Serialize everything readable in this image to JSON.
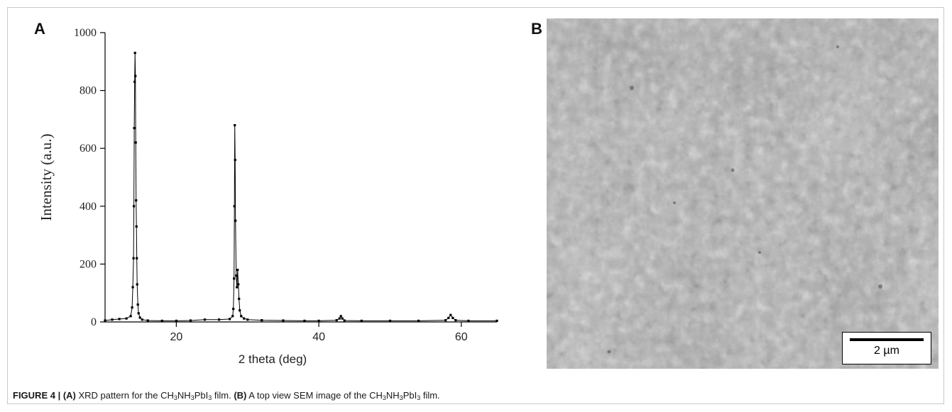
{
  "figure": {
    "panel_a_letter": "A",
    "panel_b_letter": "B",
    "caption": {
      "figure_label": "FIGURE 4 |",
      "a_tag": "(A)",
      "a_text_1": "XRD pattern for the CH",
      "a_text_2": "NH",
      "a_text_3": "PbI",
      "a_text_4": "film.",
      "b_tag": "(B)",
      "b_text_1": "A top view SEM image of the CH",
      "b_text_2": "NH",
      "b_text_3": "PbI",
      "b_text_4": "film.",
      "subscript": "3"
    }
  },
  "chart_data": {
    "type": "line",
    "xlabel": "2 theta (deg)",
    "ylabel": "Intensity (a.u.)",
    "xlim": [
      10,
      65
    ],
    "ylim": [
      0,
      1000
    ],
    "xticks": [
      20,
      40,
      60
    ],
    "yticks": [
      0,
      200,
      400,
      600,
      800,
      1000
    ],
    "grid": false,
    "series": [
      {
        "color": "#000000",
        "markers": true,
        "points": [
          [
            10.0,
            5
          ],
          [
            11.0,
            8
          ],
          [
            12.0,
            10
          ],
          [
            13.0,
            12
          ],
          [
            13.6,
            20
          ],
          [
            13.8,
            50
          ],
          [
            13.9,
            120
          ],
          [
            14.0,
            220
          ],
          [
            14.05,
            400
          ],
          [
            14.1,
            670
          ],
          [
            14.15,
            830
          ],
          [
            14.2,
            930
          ],
          [
            14.25,
            850
          ],
          [
            14.3,
            620
          ],
          [
            14.35,
            420
          ],
          [
            14.4,
            330
          ],
          [
            14.45,
            220
          ],
          [
            14.5,
            130
          ],
          [
            14.6,
            60
          ],
          [
            14.7,
            30
          ],
          [
            14.9,
            15
          ],
          [
            15.2,
            8
          ],
          [
            16.0,
            5
          ],
          [
            18.0,
            4
          ],
          [
            20.0,
            4
          ],
          [
            22.0,
            5
          ],
          [
            24.0,
            8
          ],
          [
            26.0,
            8
          ],
          [
            27.5,
            10
          ],
          [
            27.9,
            20
          ],
          [
            28.0,
            45
          ],
          [
            28.1,
            150
          ],
          [
            28.15,
            400
          ],
          [
            28.2,
            680
          ],
          [
            28.25,
            560
          ],
          [
            28.3,
            350
          ],
          [
            28.4,
            160
          ],
          [
            28.5,
            120
          ],
          [
            28.6,
            180
          ],
          [
            28.7,
            130
          ],
          [
            28.8,
            80
          ],
          [
            28.9,
            40
          ],
          [
            29.1,
            20
          ],
          [
            29.5,
            12
          ],
          [
            30.0,
            8
          ],
          [
            32.0,
            6
          ],
          [
            35.0,
            5
          ],
          [
            38.0,
            4
          ],
          [
            40.0,
            4
          ],
          [
            42.5,
            6
          ],
          [
            42.9,
            12
          ],
          [
            43.1,
            20
          ],
          [
            43.3,
            12
          ],
          [
            43.6,
            5
          ],
          [
            46.0,
            4
          ],
          [
            50.0,
            4
          ],
          [
            54.0,
            4
          ],
          [
            57.8,
            6
          ],
          [
            58.2,
            14
          ],
          [
            58.5,
            24
          ],
          [
            58.8,
            14
          ],
          [
            59.2,
            6
          ],
          [
            61.0,
            4
          ],
          [
            65.0,
            4
          ]
        ]
      }
    ]
  },
  "sem": {
    "scale_label": "2 µm"
  }
}
